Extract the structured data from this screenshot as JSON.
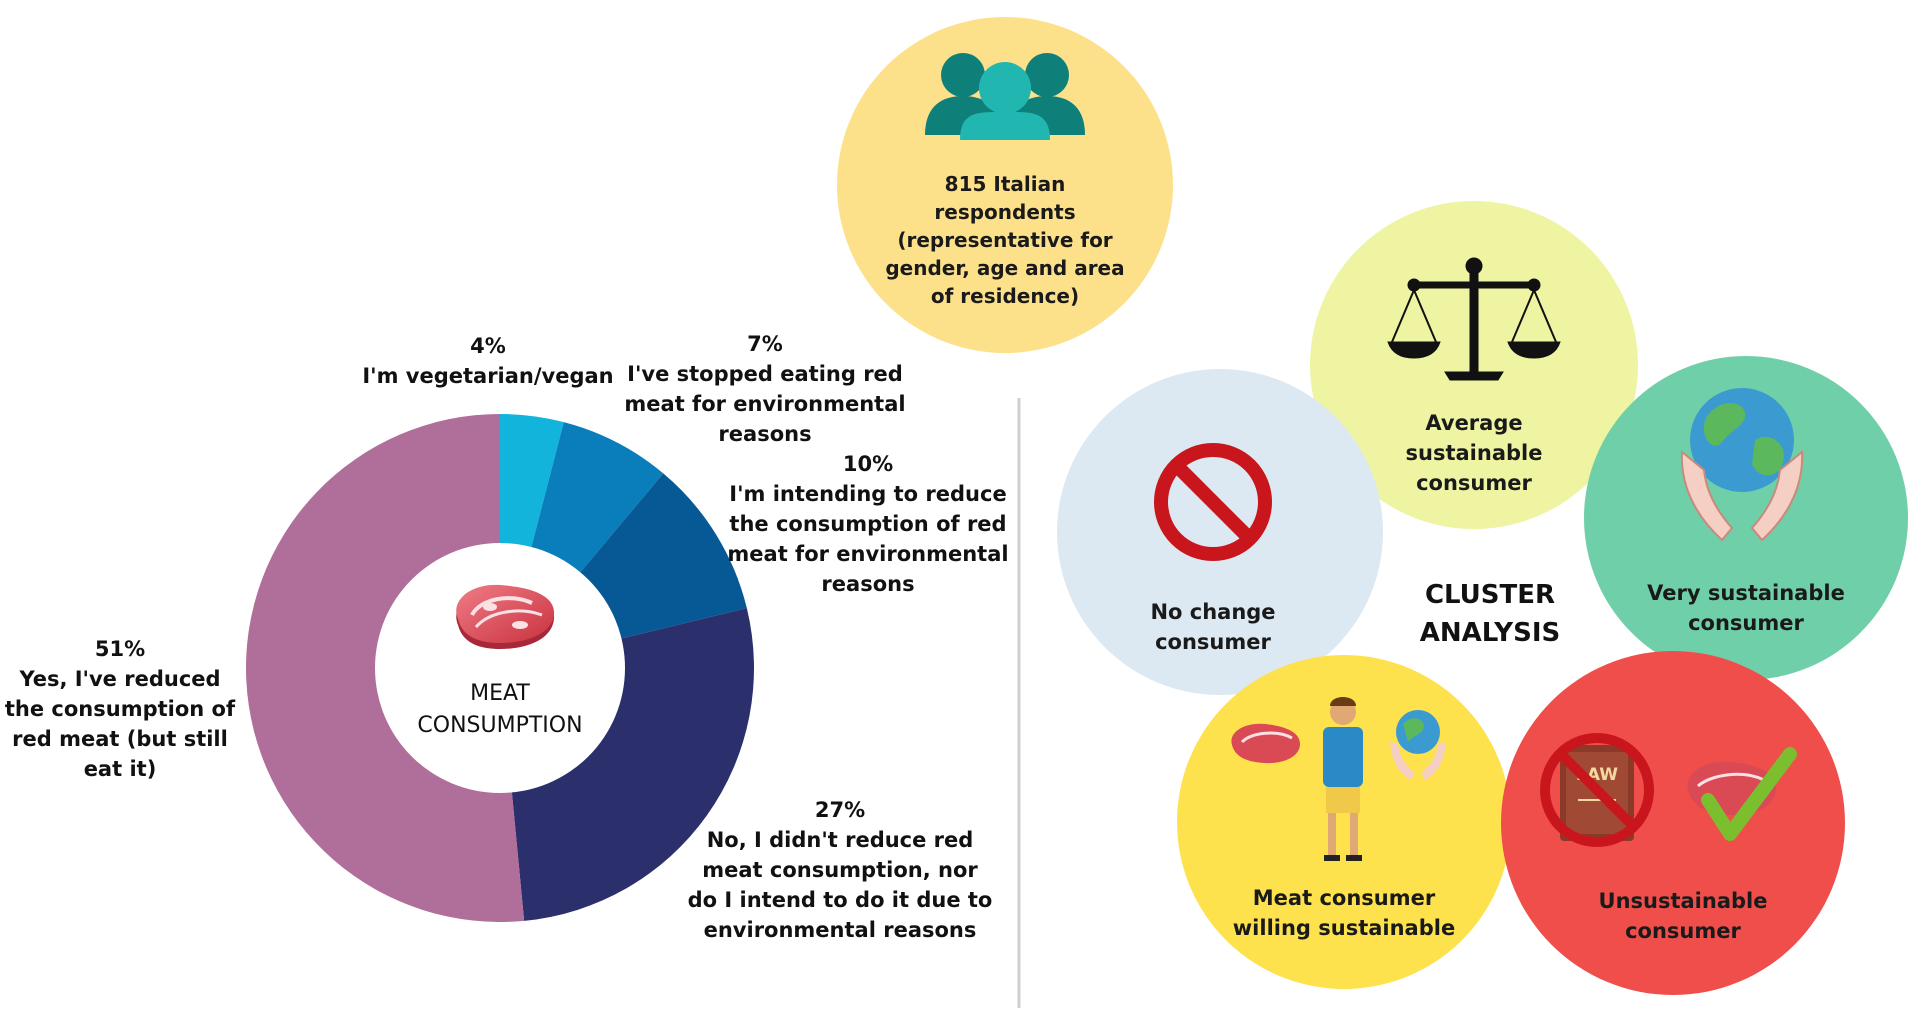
{
  "donut": {
    "center_label": [
      "MEAT",
      "CONSUMPTION"
    ],
    "center_icon": "steak-icon",
    "slices": [
      {
        "percent": 51,
        "pct_label": "51%",
        "lines": [
          "Yes, I've reduced",
          "the consumption of",
          "red meat (but still",
          "eat it)"
        ],
        "color": "#b06e9b"
      },
      {
        "percent": 27,
        "pct_label": "27%",
        "lines": [
          "No, I didn't reduce red",
          "meat consumption, nor",
          "do I intend to do it due to",
          "environmental reasons"
        ],
        "color": "#2b2f6b"
      },
      {
        "percent": 10,
        "pct_label": "10%",
        "lines": [
          "I'm intending to reduce",
          "the consumption of red",
          "meat for environmental",
          "reasons"
        ],
        "color": "#075996"
      },
      {
        "percent": 7,
        "pct_label": "7%",
        "lines": [
          "I've stopped eating red",
          "meat for environmental",
          "reasons"
        ],
        "color": "#0a7eba"
      },
      {
        "percent": 4,
        "pct_label": "4%",
        "lines": [
          "I'm vegetarian/vegan"
        ],
        "color": "#12b4dc"
      }
    ]
  },
  "respondents": {
    "icon": "people-icon",
    "lines": [
      "815 Italian",
      "respondents",
      "(representative for",
      "gender, age and area",
      "of residence)"
    ],
    "color": "#fde18a"
  },
  "cluster": {
    "title": [
      "CLUSTER",
      "ANALYSIS"
    ],
    "items": [
      {
        "lines": [
          "Average",
          "sustainable",
          "consumer"
        ],
        "icon": "balance-scale-icon",
        "color": "#eef4a2"
      },
      {
        "lines": [
          "No change",
          "consumer"
        ],
        "icon": "prohibited-icon",
        "color": "#dde9f2"
      },
      {
        "lines": [
          "Very sustainable",
          "consumer"
        ],
        "icon": "earth-in-hands-icon",
        "color": "#6fcfa8"
      },
      {
        "lines": [
          "Meat consumer",
          "willing sustainable"
        ],
        "icon": "thinking-person-icon",
        "color": "#fde24d"
      },
      {
        "lines": [
          "Unsustainable",
          "consumer"
        ],
        "icon": "no-law-steak-check-icon",
        "color": "#ef4e4b"
      }
    ]
  }
}
